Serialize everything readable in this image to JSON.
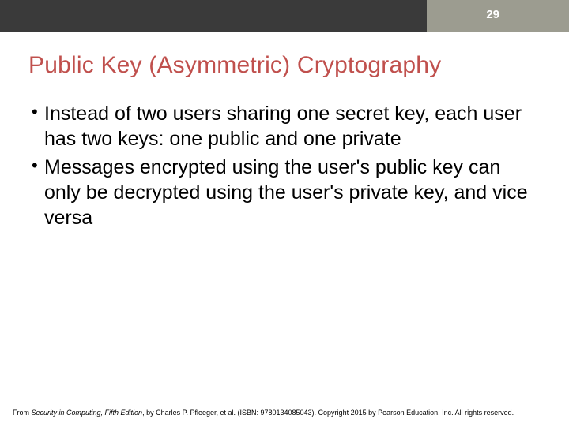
{
  "colors": {
    "header_dark": "#3a3a3a",
    "header_light": "#9c9c90",
    "slide_number_text": "#ffffff",
    "title_text": "#c0504d",
    "body_text": "#000000",
    "footer_text": "#000000",
    "background": "#ffffff"
  },
  "slide_number": "29",
  "title": "Public Key (Asymmetric) Cryptography",
  "bullets": [
    "Instead of two users sharing one secret key, each user has two keys: one public and one private",
    "Messages encrypted using the user's public key can only be decrypted using the user's private key, and vice versa"
  ],
  "footer": {
    "prefix": "From ",
    "book_title": "Security in Computing, Fifth Edition",
    "suffix": ", by Charles P. Pfleeger, et al. (ISBN: 9780134085043). Copyright 2015 by Pearson Education, Inc. All rights reserved."
  },
  "typography": {
    "title_fontsize": 30,
    "bullet_fontsize": 25,
    "footer_fontsize": 9,
    "slide_number_fontsize": 15
  }
}
